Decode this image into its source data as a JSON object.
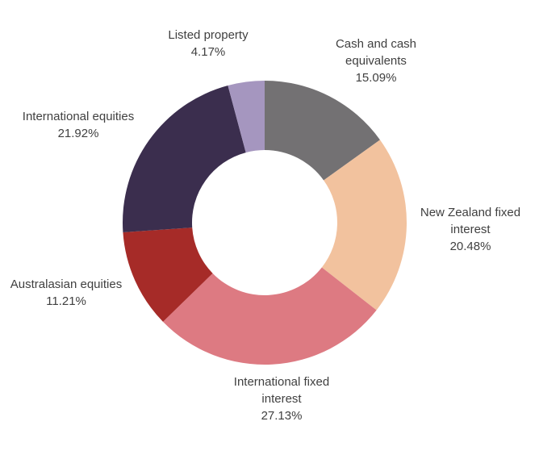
{
  "chart_data": {
    "type": "pie",
    "subtype": "donut",
    "title": "",
    "unit": "%",
    "start_angle_deg": -90,
    "direction": "clockwise",
    "hole_ratio": 0.51,
    "legend": "none",
    "labels_position": "outside",
    "segments": [
      {
        "label": "Cash and cash equivalents",
        "value": 15.09,
        "pct_label": "15.09%",
        "color": "#737173"
      },
      {
        "label": "New Zealand fixed interest",
        "value": 20.48,
        "pct_label": "20.48%",
        "color": "#f2c29e"
      },
      {
        "label": "International fixed interest",
        "value": 27.13,
        "pct_label": "27.13%",
        "color": "#dd7a82"
      },
      {
        "label": "Australasian equities",
        "value": 11.21,
        "pct_label": "11.21%",
        "color": "#a62b28"
      },
      {
        "label": "International equities",
        "value": 21.92,
        "pct_label": "21.92%",
        "color": "#3b2e4e"
      },
      {
        "label": "Listed property",
        "value": 4.17,
        "pct_label": "4.17%",
        "color": "#a596bf"
      }
    ]
  },
  "colors": {
    "background": "#ffffff",
    "label_text": "#404040"
  }
}
